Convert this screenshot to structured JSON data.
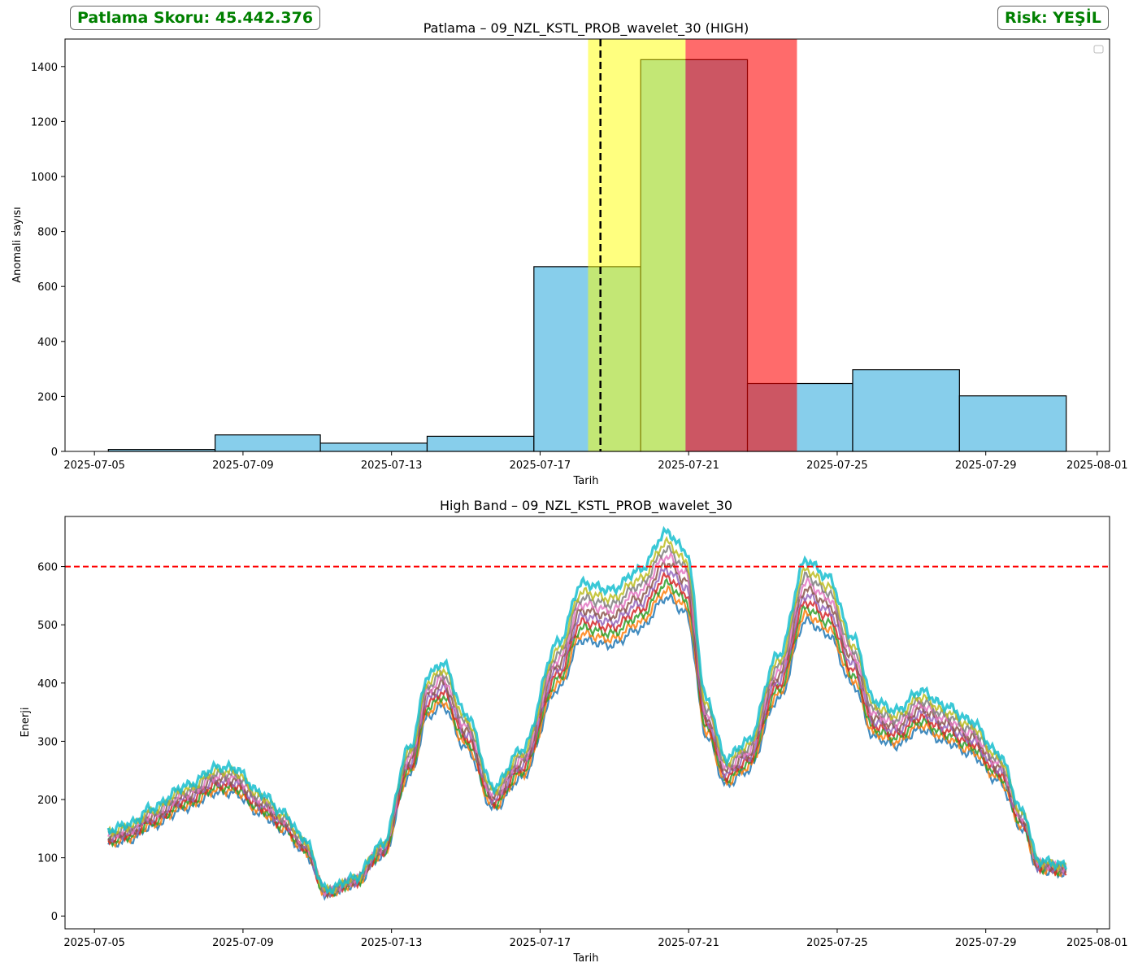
{
  "score_label": "Patlama Skoru: 45.442.376",
  "risk_label": "Risk: YEŞİL",
  "colors": {
    "badge_text": "#008000",
    "hist_fill": "#87ceeb",
    "yellow_span": "#ffff00",
    "red_span": "#ff0000",
    "vline": "#000000",
    "threshold": "#ff0000"
  },
  "chart_data": [
    {
      "type": "bar",
      "title": "Patlama – 09_NZL_KSTL_PROB_wavelet_30 (HIGH)",
      "xlabel": "Tarih",
      "ylabel": "Anomali sayısı",
      "xlim": [
        "2025-07-04T05:00",
        "2025-08-01T08:00"
      ],
      "ylim": [
        0,
        1500
      ],
      "x_ticks": [
        "2025-07-05",
        "2025-07-09",
        "2025-07-13",
        "2025-07-17",
        "2025-07-21",
        "2025-07-25",
        "2025-07-29",
        "2025-08-01"
      ],
      "y_ticks": [
        0,
        200,
        400,
        600,
        800,
        1000,
        1200,
        1400
      ],
      "bins": [
        {
          "start": "2025-07-05T09:00",
          "end": "2025-07-08T06:00",
          "value": 7
        },
        {
          "start": "2025-07-08T06:00",
          "end": "2025-07-11T02:00",
          "value": 60
        },
        {
          "start": "2025-07-11T02:00",
          "end": "2025-07-13T23:00",
          "value": 30
        },
        {
          "start": "2025-07-13T23:00",
          "end": "2025-07-16T20:00",
          "value": 55
        },
        {
          "start": "2025-07-16T20:00",
          "end": "2025-07-19T17:00",
          "value": 672
        },
        {
          "start": "2025-07-19T17:00",
          "end": "2025-07-22T14:00",
          "value": 1425
        },
        {
          "start": "2025-07-22T14:00",
          "end": "2025-07-25T10:00",
          "value": 247
        },
        {
          "start": "2025-07-25T10:00",
          "end": "2025-07-28T07:00",
          "value": 297
        },
        {
          "start": "2025-07-28T07:00",
          "end": "2025-07-31T04:00",
          "value": 202
        }
      ],
      "spans": [
        {
          "start": "2025-07-18T07:00",
          "end": "2025-07-20T22:00",
          "color": "yellow"
        },
        {
          "start": "2025-07-20T22:00",
          "end": "2025-07-23T22:00",
          "color": "red"
        }
      ],
      "vline": "2025-07-18T15:00",
      "legend": "empty, upper right",
      "grid": false
    },
    {
      "type": "line",
      "title": "High Band – 09_NZL_KSTL_PROB_wavelet_30",
      "xlabel": "Tarih",
      "ylabel": "Enerji",
      "xlim": [
        "2025-07-04T05:00",
        "2025-08-01T08:00"
      ],
      "ylim": [
        -22,
        686
      ],
      "x_ticks": [
        "2025-07-05",
        "2025-07-09",
        "2025-07-13",
        "2025-07-17",
        "2025-07-21",
        "2025-07-25",
        "2025-07-29",
        "2025-08-01"
      ],
      "y_ticks": [
        0,
        100,
        200,
        300,
        400,
        500,
        600
      ],
      "threshold": 600,
      "series_count": 10,
      "series_scales": [
        0.93,
        0.95,
        0.97,
        0.99,
        1.01,
        1.03,
        1.05,
        1.07,
        1.09,
        1.12
      ],
      "series_colors": [
        "#1f77b4",
        "#ff7f0e",
        "#2ca02c",
        "#d62728",
        "#9467bd",
        "#8c564b",
        "#e377c2",
        "#7f7f7f",
        "#bcbd22",
        "#17becf"
      ],
      "envelope": [
        {
          "t": "2025-07-05T09:00",
          "y": 132
        },
        {
          "t": "2025-07-06T00:00",
          "y": 142
        },
        {
          "t": "2025-07-06T12:00",
          "y": 165
        },
        {
          "t": "2025-07-07T12:00",
          "y": 200
        },
        {
          "t": "2025-07-08T07:00",
          "y": 228
        },
        {
          "t": "2025-07-08T18:00",
          "y": 227
        },
        {
          "t": "2025-07-09T12:00",
          "y": 188
        },
        {
          "t": "2025-07-10T02:00",
          "y": 158
        },
        {
          "t": "2025-07-10T15:00",
          "y": 120
        },
        {
          "t": "2025-07-11T06:00",
          "y": 40
        },
        {
          "t": "2025-07-12T00:00",
          "y": 58
        },
        {
          "t": "2025-07-12T18:00",
          "y": 110
        },
        {
          "t": "2025-07-13T12:00",
          "y": 260
        },
        {
          "t": "2025-07-14T00:00",
          "y": 370
        },
        {
          "t": "2025-07-14T09:00",
          "y": 388
        },
        {
          "t": "2025-07-15T00:00",
          "y": 310
        },
        {
          "t": "2025-07-15T18:00",
          "y": 198
        },
        {
          "t": "2025-07-16T12:00",
          "y": 255
        },
        {
          "t": "2025-07-17T12:00",
          "y": 420
        },
        {
          "t": "2025-07-18T03:00",
          "y": 510
        },
        {
          "t": "2025-07-18T22:00",
          "y": 500
        },
        {
          "t": "2025-07-19T16:00",
          "y": 530
        },
        {
          "t": "2025-07-20T10:00",
          "y": 588
        },
        {
          "t": "2025-07-20T22:00",
          "y": 560
        },
        {
          "t": "2025-07-21T12:00",
          "y": 330
        },
        {
          "t": "2025-07-22T00:00",
          "y": 242
        },
        {
          "t": "2025-07-22T14:00",
          "y": 268
        },
        {
          "t": "2025-07-23T10:00",
          "y": 400
        },
        {
          "t": "2025-07-24T04:00",
          "y": 545
        },
        {
          "t": "2025-07-24T18:00",
          "y": 520
        },
        {
          "t": "2025-07-25T10:00",
          "y": 428
        },
        {
          "t": "2025-07-26T00:00",
          "y": 330
        },
        {
          "t": "2025-07-26T14:00",
          "y": 315
        },
        {
          "t": "2025-07-27T06:00",
          "y": 345
        },
        {
          "t": "2025-07-27T22:00",
          "y": 322
        },
        {
          "t": "2025-07-28T14:00",
          "y": 300
        },
        {
          "t": "2025-07-29T08:00",
          "y": 250
        },
        {
          "t": "2025-07-30T00:00",
          "y": 160
        },
        {
          "t": "2025-07-30T10:00",
          "y": 85
        },
        {
          "t": "2025-07-31T04:00",
          "y": 78
        }
      ],
      "grid": false
    }
  ]
}
